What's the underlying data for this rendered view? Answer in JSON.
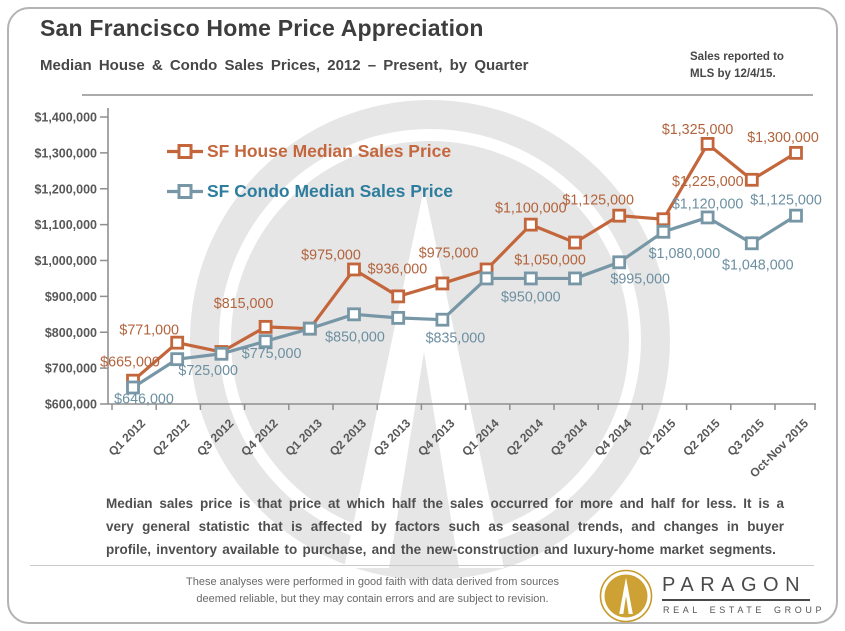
{
  "header": {
    "title": "San Francisco Home Price Appreciation",
    "subtitle": "Median House & Condo Sales Prices, 2012 – Present, by Quarter",
    "sales_note_line1": "Sales reported to",
    "sales_note_line2": "MLS by 12/4/15."
  },
  "chart_data": {
    "type": "line",
    "title": "San Francisco Home Price Appreciation",
    "subtitle": "Median House & Condo Sales Prices, 2012 – Present, by Quarter",
    "categories": [
      "Q1 2012",
      "Q2 2012",
      "Q3 2012",
      "Q4 2012",
      "Q1 2013",
      "Q2 2013",
      "Q3 2013",
      "Q4 2013",
      "Q1 2014",
      "Q2 2014",
      "Q3 2014",
      "Q4 2014",
      "Q1 2015",
      "Q2 2015",
      "Q3 2015",
      "Oct-Nov 2015"
    ],
    "series": [
      {
        "name": "SF House Median Sales Price",
        "color": "#C4663C",
        "legend_text_color": "#C5673E",
        "label_color": "#B2633C",
        "values": [
          665000,
          771000,
          745000,
          815000,
          810000,
          975000,
          900000,
          936000,
          975000,
          1100000,
          1050000,
          1125000,
          1115000,
          1325000,
          1225000,
          1300000
        ],
        "data_labels": [
          "$665,000",
          "$771,000",
          null,
          "$815,000",
          null,
          "$975,000",
          null,
          "$936,000",
          "$975,000",
          "$1,100,000",
          "$1,050,000",
          "$1,125,000",
          null,
          "$1,325,000",
          "$1,225,000",
          "$1,300,000"
        ]
      },
      {
        "name": "SF Condo Median Sales Price",
        "color": "#7897A6",
        "legend_text_color": "#2E7D9E",
        "label_color": "#6C8FA0",
        "values": [
          646000,
          725000,
          740000,
          775000,
          810000,
          850000,
          840000,
          835000,
          950000,
          950000,
          950000,
          995000,
          1080000,
          1120000,
          1048000,
          1125000
        ],
        "data_labels": [
          "$646,000",
          "$725,000",
          null,
          "$775,000",
          null,
          "$850,000",
          null,
          "$835,000",
          null,
          "$950,000",
          null,
          "$995,000",
          "$1,080,000",
          "$1,120,000",
          "$1,048,000",
          "$1,125,000"
        ]
      }
    ],
    "y_axis": {
      "min": 600000,
      "max": 1400000,
      "step": 100000,
      "tick_labels": [
        "$1,400,000",
        "$1,300,000",
        "$1,200,000",
        "$1,100,000",
        "$1,000,000",
        "$900,000",
        "$800,000",
        "$700,000",
        "$600,000"
      ]
    },
    "grid": false,
    "legend_position": "top-left-inside"
  },
  "footer": {
    "definition": "Median sales price is that price at which half the sales occurred for more and half for less. It is a very general statistic that is affected by factors such as seasonal trends, and changes in buyer profile, inventory available to purchase, and the new-construction and luxury-home market segments.",
    "disclaimer_line1": "These analyses were performed in good faith with data derived from sources",
    "disclaimer_line2": "deemed reliable, but they may contain errors and are subject to revision.",
    "logo": {
      "brand": "PARAGON",
      "tagline": "REAL ESTATE GROUP",
      "gold": "#CDA133"
    }
  }
}
